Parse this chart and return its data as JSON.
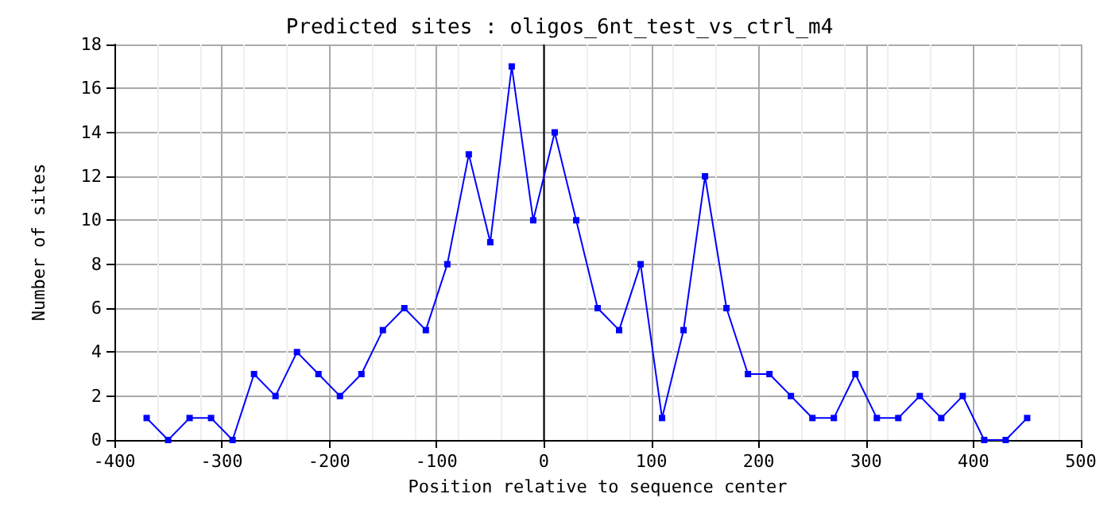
{
  "chart_data": {
    "type": "line",
    "title": "Predicted sites : oligos_6nt_test_vs_ctrl_m4",
    "xlabel": "Position relative to sequence center",
    "ylabel": "Number of sites",
    "x": [
      -370,
      -350,
      -330,
      -310,
      -290,
      -270,
      -250,
      -230,
      -210,
      -190,
      -170,
      -150,
      -130,
      -110,
      -90,
      -70,
      -50,
      -30,
      -10,
      10,
      30,
      50,
      70,
      90,
      110,
      130,
      150,
      170,
      190,
      210,
      230,
      250,
      270,
      290,
      310,
      330,
      350,
      370,
      390,
      410,
      430,
      450
    ],
    "series": [
      {
        "color": "#0000ff",
        "values": [
          1,
          0,
          1,
          1,
          0,
          3,
          2,
          4,
          3,
          2,
          3,
          5,
          6,
          5,
          8,
          13,
          9,
          17,
          10,
          14,
          10,
          6,
          5,
          8,
          1,
          5,
          12,
          6,
          3,
          3,
          2,
          1,
          1,
          3,
          1,
          1,
          2,
          1,
          2,
          0,
          0,
          1
        ]
      }
    ],
    "xlim": [
      -400,
      500
    ],
    "xticks": [
      -400,
      -300,
      -200,
      -100,
      0,
      100,
      200,
      300,
      400,
      500
    ],
    "ylim": [
      0,
      18
    ],
    "yticks": [
      0,
      2,
      4,
      6,
      8,
      10,
      12,
      14,
      16,
      18
    ],
    "ref_lines": [
      {
        "axis": "x",
        "value": 0,
        "color": "#000000"
      }
    ],
    "grid": true,
    "marker": "square",
    "line_style": "solid"
  }
}
